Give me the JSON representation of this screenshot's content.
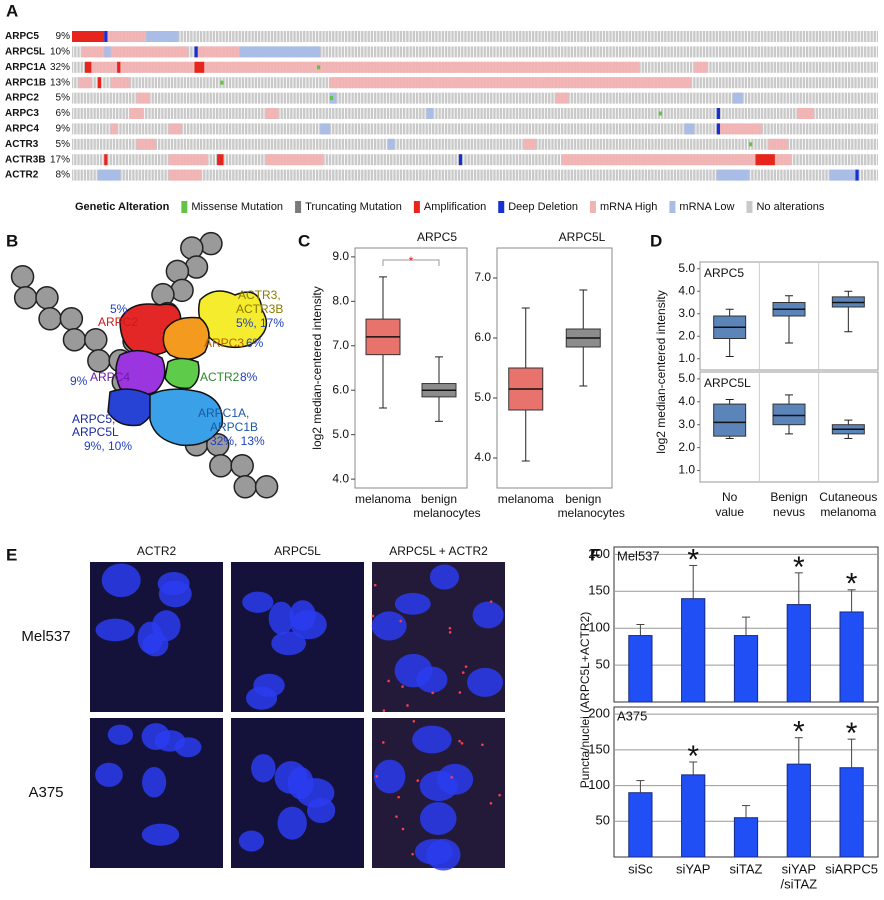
{
  "figure": {
    "A": {
      "label": "A",
      "samples": 250,
      "rows": [
        {
          "gene": "ARPC5",
          "pct": "9%",
          "alterations": [
            [
              4,
              10,
              23
            ],
            [
              5,
              23,
              33
            ],
            [
              2,
              0,
              10
            ],
            [
              3,
              10,
              11
            ]
          ]
        },
        {
          "gene": "ARPC5L",
          "pct": "10%",
          "alterations": [
            [
              4,
              3,
              36
            ],
            [
              4,
              39,
              52
            ],
            [
              5,
              52,
              77
            ],
            [
              5,
              10,
              12
            ],
            [
              3,
              38,
              39
            ]
          ]
        },
        {
          "gene": "ARPC1A",
          "pct": "32%",
          "alterations": [
            [
              4,
              5,
              176
            ],
            [
              4,
              193,
              197
            ],
            [
              2,
              4,
              6
            ],
            [
              2,
              14,
              15
            ],
            [
              2,
              38,
              41
            ],
            [
              0,
              76,
              77
            ]
          ]
        },
        {
          "gene": "ARPC1B",
          "pct": "13%",
          "alterations": [
            [
              4,
              2,
              6
            ],
            [
              4,
              12,
              18
            ],
            [
              4,
              80,
              192
            ],
            [
              2,
              8,
              9
            ],
            [
              0,
              46,
              47
            ]
          ]
        },
        {
          "gene": "ARPC2",
          "pct": "5%",
          "alterations": [
            [
              4,
              20,
              24
            ],
            [
              5,
              80,
              82
            ],
            [
              4,
              150,
              154
            ],
            [
              5,
              205,
              208
            ],
            [
              0,
              80,
              81
            ]
          ]
        },
        {
          "gene": "ARPC3",
          "pct": "6%",
          "alterations": [
            [
              4,
              18,
              22
            ],
            [
              4,
              60,
              64
            ],
            [
              5,
              110,
              112
            ],
            [
              4,
              225,
              230
            ],
            [
              0,
              182,
              183
            ],
            [
              3,
              200,
              201
            ]
          ]
        },
        {
          "gene": "ARPC4",
          "pct": "9%",
          "alterations": [
            [
              4,
              12,
              14
            ],
            [
              4,
              30,
              34
            ],
            [
              5,
              77,
              80
            ],
            [
              5,
              190,
              193
            ],
            [
              4,
              201,
              214
            ],
            [
              3,
              200,
              201
            ]
          ]
        },
        {
          "gene": "ACTR3",
          "pct": "5%",
          "alterations": [
            [
              4,
              20,
              26
            ],
            [
              5,
              98,
              100
            ],
            [
              4,
              140,
              144
            ],
            [
              4,
              216,
              222
            ],
            [
              0,
              210,
              211
            ]
          ]
        },
        {
          "gene": "ACTR3B",
          "pct": "17%",
          "alterations": [
            [
              4,
              30,
              42
            ],
            [
              4,
              60,
              78
            ],
            [
              4,
              152,
              223
            ],
            [
              2,
              10,
              11
            ],
            [
              2,
              45,
              47
            ],
            [
              3,
              120,
              121
            ],
            [
              2,
              212,
              218
            ]
          ]
        },
        {
          "gene": "ACTR2",
          "pct": "8%",
          "alterations": [
            [
              5,
              8,
              15
            ],
            [
              4,
              30,
              40
            ],
            [
              5,
              200,
              210
            ],
            [
              5,
              235,
              243
            ],
            [
              3,
              243,
              244
            ]
          ]
        }
      ],
      "legend_title": "Genetic Alteration",
      "legend": [
        {
          "name": "Missense Mutation",
          "color": "#66c244"
        },
        {
          "name": "Truncating Mutation",
          "color": "#7a7a7a"
        },
        {
          "name": "Amplification",
          "color": "#e8251c"
        },
        {
          "name": "Deep Deletion",
          "color": "#1531d6"
        },
        {
          "name": "mRNA High",
          "color": "#f2b3b3"
        },
        {
          "name": "mRNA Low",
          "color": "#a9bde6"
        },
        {
          "name": "No alterations",
          "color": "#c9c9c9"
        }
      ]
    },
    "B": {
      "label": "B",
      "subunits": [
        {
          "name": [
            "ARPC2"
          ],
          "pct": "5%"
        },
        {
          "name": [
            "ACTR3,",
            "ACTR3B"
          ],
          "pct": "5%, 17%"
        },
        {
          "name": [
            "ARPC3"
          ],
          "pct": "6%"
        },
        {
          "name": [
            "ACTR2"
          ],
          "pct": "8%"
        },
        {
          "name": [
            "ARPC4"
          ],
          "pct": "9%"
        },
        {
          "name": [
            "ARPC5,",
            "ARPC5L"
          ],
          "pct": "9%, 10%"
        },
        {
          "name": [
            "ARPC1A,",
            "ARPC1B"
          ],
          "pct": "32%, 13%"
        }
      ]
    },
    "C": {
      "label": "C",
      "ylabel": "log2 median-centered intensity",
      "categories": [
        [
          "melanoma"
        ],
        [
          "benign",
          "melanocytes"
        ]
      ],
      "plots": [
        {
          "title": "ARPC5",
          "ylim": [
            3.8,
            9.2
          ],
          "yticks": [
            {
              "value": 4,
              "label": "4.0"
            },
            {
              "value": 5,
              "label": "5.0"
            },
            {
              "value": 6,
              "label": "6.0"
            },
            {
              "value": 7,
              "label": "7.0"
            },
            {
              "value": 8,
              "label": "8.0"
            },
            {
              "value": 9,
              "label": "9.0"
            }
          ],
          "boxes": [
            {
              "min": 5.6,
              "q1": 6.8,
              "median": 7.2,
              "q3": 7.6,
              "max": 8.55,
              "color": "#e8736c"
            },
            {
              "min": 5.3,
              "q1": 5.85,
              "median": 6.0,
              "q3": 6.15,
              "max": 6.75,
              "color": "#8c8c8c"
            }
          ],
          "annotation": "*"
        },
        {
          "title": "ARPC5L",
          "ylim": [
            3.5,
            7.5
          ],
          "yticks": [
            {
              "value": 4,
              "label": "4.0"
            },
            {
              "value": 5,
              "label": "5.0"
            },
            {
              "value": 6,
              "label": "6.0"
            },
            {
              "value": 7,
              "label": "7.0"
            }
          ],
          "boxes": [
            {
              "min": 3.95,
              "q1": 4.8,
              "median": 5.15,
              "q3": 5.5,
              "max": 6.5,
              "color": "#e8736c"
            },
            {
              "min": 5.2,
              "q1": 5.85,
              "median": 6.0,
              "q3": 6.15,
              "max": 6.8,
              "color": "#8c8c8c"
            }
          ]
        }
      ]
    },
    "D": {
      "label": "D",
      "ylabel": "log2 median-centered intensity",
      "categories": [
        [
          "No",
          "value"
        ],
        [
          "Benign",
          "nevus"
        ],
        [
          "Cutaneous",
          "melanoma"
        ]
      ],
      "ylim": [
        0.5,
        5.3
      ],
      "yticks": [
        {
          "value": 1,
          "label": "1.0"
        },
        {
          "value": 2,
          "label": "2.0"
        },
        {
          "value": 3,
          "label": "3.0"
        },
        {
          "value": 4,
          "label": "4.0"
        },
        {
          "value": 5,
          "label": "5.0"
        }
      ],
      "color": "#5b84b8",
      "plots": [
        {
          "title": "ARPC5",
          "boxes": [
            {
              "min": 1.1,
              "q1": 1.9,
              "median": 2.4,
              "q3": 2.9,
              "max": 3.2
            },
            {
              "min": 1.7,
              "q1": 2.9,
              "median": 3.2,
              "q3": 3.5,
              "max": 3.8
            },
            {
              "min": 2.2,
              "q1": 3.3,
              "median": 3.5,
              "q3": 3.75,
              "max": 4.0
            }
          ]
        },
        {
          "title": "ARPC5L",
          "boxes": [
            {
              "min": 2.4,
              "q1": 2.5,
              "median": 3.1,
              "q3": 3.9,
              "max": 4.1
            },
            {
              "min": 2.6,
              "q1": 3.0,
              "median": 3.4,
              "q3": 3.9,
              "max": 4.3
            },
            {
              "min": 2.4,
              "q1": 2.6,
              "median": 2.8,
              "q3": 3.0,
              "max": 3.2
            }
          ]
        }
      ]
    },
    "E": {
      "label": "E",
      "columns": [
        "ACTR2",
        "ARPC5L",
        "ARPC5L + ACTR2"
      ],
      "rows": [
        "Mel537",
        "A375"
      ]
    },
    "F": {
      "label": "F",
      "ylabel": "Puncta/nuclei (ARPC5L+ACTR2)",
      "categories": [
        [
          "siSc"
        ],
        [
          "siYAP"
        ],
        [
          "siTAZ"
        ],
        [
          "siYAP",
          "/siTAZ"
        ],
        [
          "siARPC5"
        ]
      ],
      "color": "#1f4ff5",
      "charts": [
        {
          "title": "Mel537",
          "ylim": [
            0,
            210
          ],
          "yticks": [
            50,
            100,
            150,
            200
          ],
          "values": [
            90,
            140,
            90,
            132,
            122
          ],
          "errors": [
            15,
            45,
            25,
            43,
            30
          ],
          "annotations": [
            {
              "index": 1,
              "label": "*"
            },
            {
              "index": 3,
              "label": "*"
            },
            {
              "index": 4,
              "label": "*"
            }
          ]
        },
        {
          "title": "A375",
          "ylim": [
            0,
            210
          ],
          "yticks": [
            50,
            100,
            150,
            200
          ],
          "values": [
            90,
            115,
            55,
            130,
            125
          ],
          "errors": [
            17,
            18,
            17,
            37,
            40
          ],
          "annotations": [
            {
              "index": 1,
              "label": "*"
            },
            {
              "index": 3,
              "label": "*"
            },
            {
              "index": 4,
              "label": "*"
            }
          ]
        }
      ]
    }
  }
}
